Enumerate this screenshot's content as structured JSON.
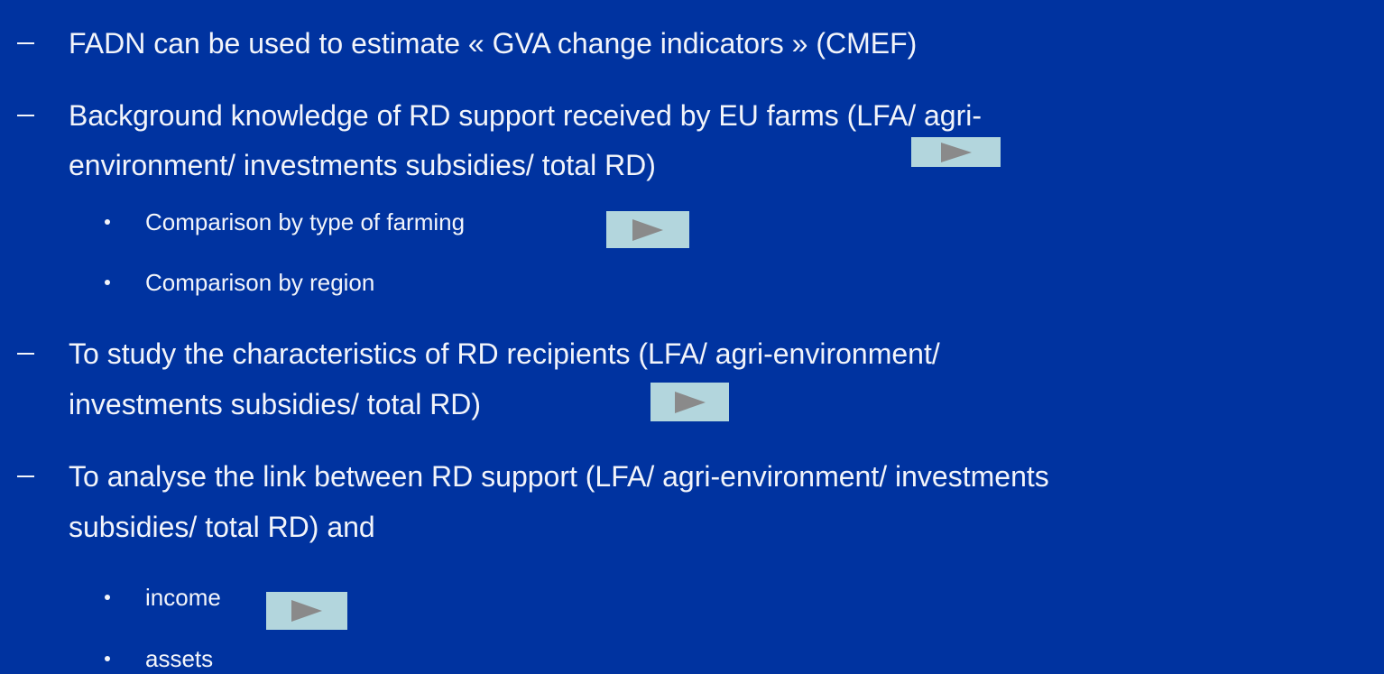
{
  "items": [
    {
      "lines": [
        "FADN can be used to estimate « GVA change indicators » (CMEF)"
      ]
    },
    {
      "lines": [
        "Background knowledge of RD support received by EU farms (LFA/ agri-",
        "environment/ investments subsidies/ total RD)"
      ],
      "subitems": [
        "Comparison by type of farming",
        "Comparison by region"
      ]
    },
    {
      "lines": [
        "To study the characteristics of RD recipients (LFA/ agri-environment/",
        "investments subsidies/ total RD)"
      ]
    },
    {
      "lines": [
        "To analyse the link between RD support (LFA/ agri-environment/ investments",
        "subsidies/ total RD) and"
      ],
      "subitems": [
        "income",
        "assets"
      ]
    }
  ]
}
